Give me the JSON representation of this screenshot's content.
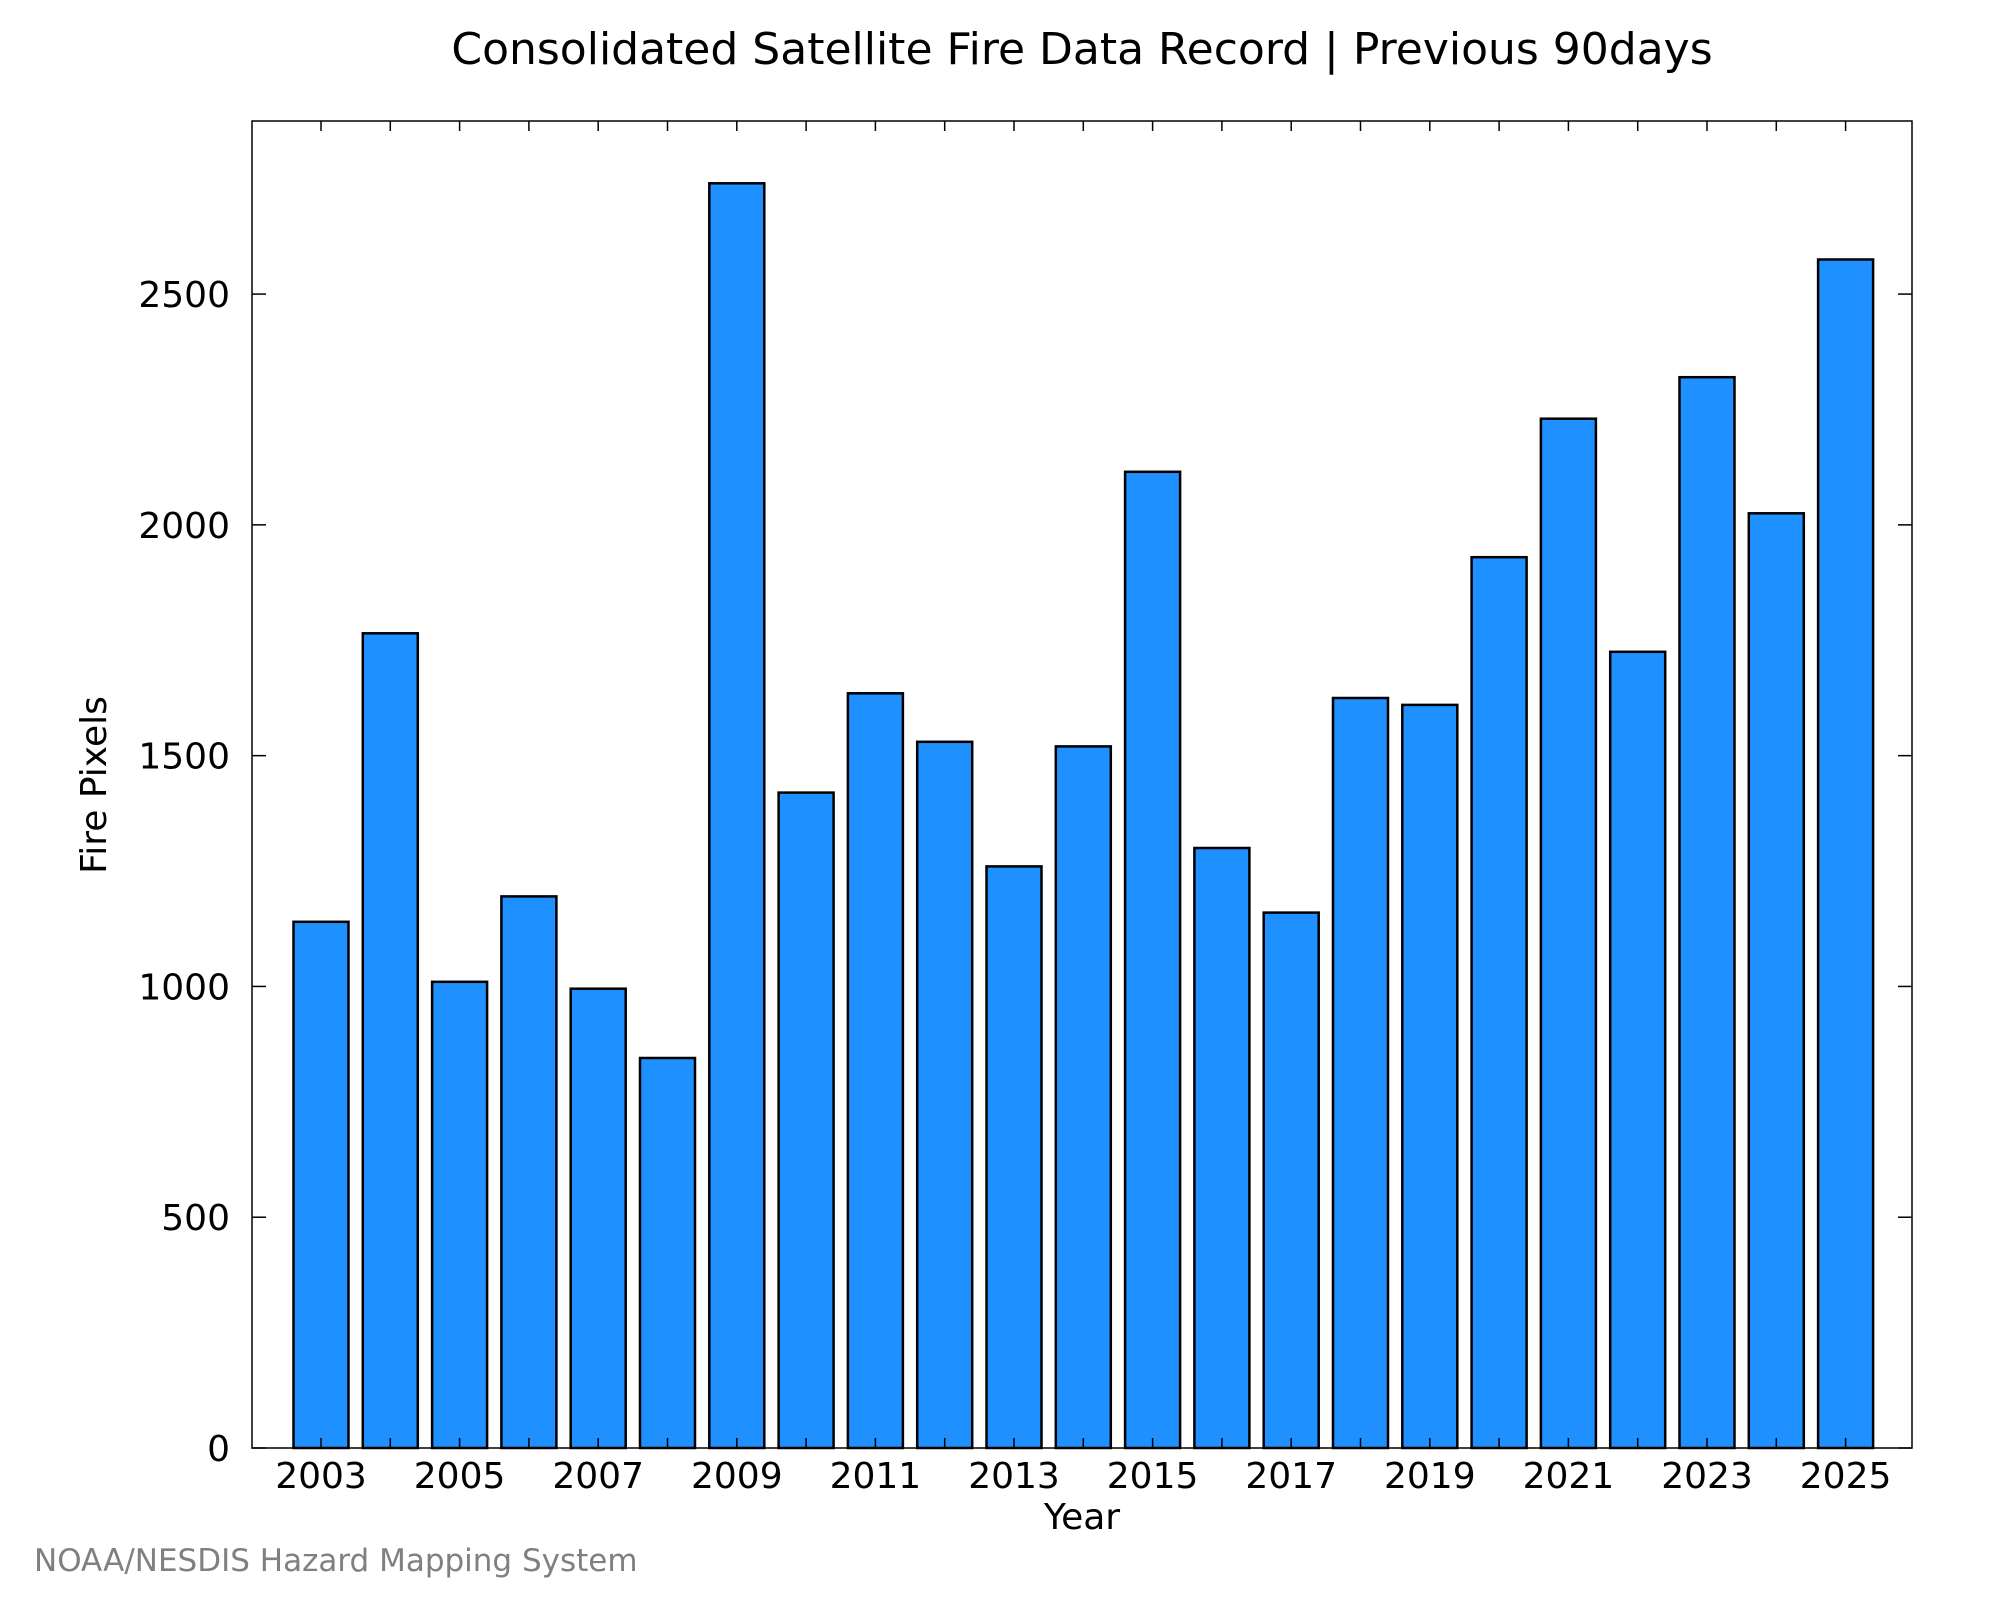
{
  "chart_data": {
    "type": "bar",
    "title": "Consolidated Satellite Fire Data Record | Previous 90days",
    "xlabel": "Year",
    "ylabel": "Fire Pixels",
    "categories": [
      "2003",
      "2004",
      "2005",
      "2006",
      "2007",
      "2008",
      "2009",
      "2010",
      "2011",
      "2012",
      "2013",
      "2014",
      "2015",
      "2016",
      "2017",
      "2018",
      "2019",
      "2020",
      "2021",
      "2022",
      "2023",
      "2024",
      "2025"
    ],
    "values": [
      1140,
      1765,
      1010,
      1195,
      995,
      845,
      2740,
      1420,
      1635,
      1530,
      1260,
      1520,
      2115,
      1300,
      1160,
      1625,
      1610,
      1930,
      2230,
      1725,
      2320,
      2025,
      2575
    ],
    "x_tick_labels": [
      "2003",
      "2005",
      "2007",
      "2009",
      "2011",
      "2013",
      "2015",
      "2017",
      "2019",
      "2021",
      "2023",
      "2025"
    ],
    "y_ticks": [
      0,
      500,
      1000,
      1500,
      2000,
      2500
    ],
    "ylim": [
      0,
      2875
    ],
    "grid": false,
    "legend": "none",
    "colors": {
      "bar_fill": "#1e90ff",
      "bar_stroke": "#000000",
      "axis": "#000000"
    }
  },
  "footer": {
    "credit": "NOAA/NESDIS Hazard Mapping System",
    "credit_color": "#808080"
  }
}
